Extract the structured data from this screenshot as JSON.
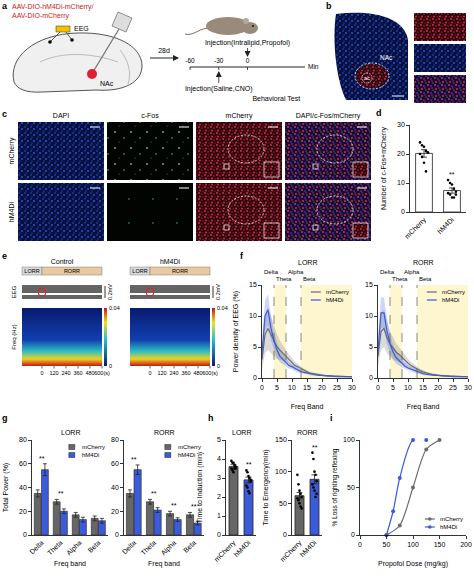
{
  "a": {
    "panel": "a",
    "vectors": [
      "AAV-DIO-hM4Di-mCherry/",
      "AAV-DIO-mCherry"
    ],
    "electrode": "EEG",
    "target": "NAc",
    "interval": "28d",
    "injection": "Injection(Intralipid,Propofol)",
    "pretreatment": "Injection(Saline,CNO)",
    "test": "Behavioral Test",
    "timeline": {
      "range": [
        -60,
        60
      ],
      "ticks": [
        -60,
        -30,
        0
      ],
      "unit": "Min",
      "pretreatment_time": -30,
      "injection_time": 0,
      "test_start": 0
    }
  },
  "b": {
    "panel": "b",
    "region": "NAc",
    "structure": "ac"
  },
  "c": {
    "panel": "c",
    "columns": [
      "DAPI",
      "c-Fos",
      "mCherry",
      "DAPI/c-Fos/mCherry"
    ],
    "rows": [
      "mCherry",
      "hM4Di"
    ]
  },
  "e": {
    "panel": "e",
    "columns": [
      "Control",
      "hM4Di"
    ],
    "phases": [
      {
        "label": "LORR",
        "start": -200,
        "end": 0
      },
      {
        "label": "RORR",
        "start": 0,
        "end": 600
      }
    ],
    "trace_label": "EEG",
    "scale": "0.2mV",
    "freq_label": "Freq (Hz)",
    "time_range": [
      -200,
      600
    ],
    "time_ticks": [
      0,
      120,
      240,
      360,
      480,
      {
        "value": 600,
        "label": "600(s)"
      }
    ],
    "colorbar_range": [
      0,
      0.04
    ],
    "colorbar_ticks": [
      0,
      0.04
    ]
  },
  "chart_data": [
    {
      "panel": "d",
      "type": "bar",
      "categories": [
        "mCherry",
        "hM4Di"
      ],
      "values": [
        20.2,
        7.4
      ],
      "error": [
        1.3,
        0.9
      ],
      "points": [
        [
          24,
          23,
          22.5,
          21,
          20.5,
          20,
          19,
          17,
          14,
          20.5
        ],
        [
          11,
          10,
          9.5,
          8,
          7,
          6.5,
          6,
          5,
          5,
          6
        ]
      ],
      "color": "#ffffff",
      "ylabel": "Number of c-Fos+mCherry",
      "ylim": [
        0,
        30
      ],
      "yticks": [
        0,
        10,
        20,
        30
      ],
      "annotations": [
        {
          "category": 1,
          "text": "**"
        }
      ]
    },
    {
      "panel": "f",
      "type": "line",
      "title": "LORR",
      "x": [
        0,
        1,
        2,
        3,
        4,
        5,
        6,
        7,
        8,
        9,
        10,
        11,
        12,
        13,
        14,
        15,
        16,
        17,
        18,
        19,
        20,
        21,
        22,
        23,
        24,
        25,
        26,
        27,
        28,
        29,
        30
      ],
      "series": [
        {
          "name": "mCherry",
          "color": "#6b6b6b",
          "values": [
            3.0,
            7.0,
            8.0,
            7.0,
            6.0,
            5.0,
            4.5,
            4.0,
            3.5,
            3.0,
            2.5,
            2.0,
            1.8,
            1.5,
            1.2,
            1.0,
            0.8,
            0.7,
            0.6,
            0.5,
            0.5,
            0.4,
            0.4,
            0.3,
            0.3,
            0.3,
            0.3,
            0.2,
            0.2,
            0.2,
            0.2
          ],
          "error": [
            1.5,
            3.0,
            3.5,
            3.0,
            2.5,
            2.0,
            1.5,
            1.2,
            1.0,
            0.8,
            0.7,
            0.6,
            0.5,
            0.4,
            0.3,
            0.3,
            0.2,
            0.2,
            0.2,
            0.2,
            0.2,
            0.1,
            0.1,
            0.1,
            0.1,
            0.1,
            0.1,
            0.1,
            0.1,
            0.1,
            0.1
          ]
        },
        {
          "name": "hM4Di",
          "color": "#3b5bdb",
          "values": [
            4.0,
            10.0,
            11.0,
            8.0,
            6.0,
            4.5,
            3.5,
            3.0,
            2.5,
            2.0,
            1.8,
            1.5,
            1.2,
            1.0,
            0.9,
            0.8,
            0.6,
            0.5,
            0.5,
            0.4,
            0.4,
            0.3,
            0.3,
            0.3,
            0.2,
            0.2,
            0.2,
            0.2,
            0.2,
            0.2,
            0.2
          ],
          "error": [
            1.5,
            2.5,
            2.5,
            2.0,
            1.5,
            1.2,
            1.0,
            0.8,
            0.6,
            0.5,
            0.4,
            0.4,
            0.3,
            0.3,
            0.2,
            0.2,
            0.2,
            0.1,
            0.1,
            0.1,
            0.1,
            0.1,
            0.1,
            0.1,
            0.1,
            0.1,
            0.1,
            0.1,
            0.1,
            0.1,
            0.1
          ]
        }
      ],
      "xlabel": "Freq Band",
      "ylabel": "Power density of EEG (%)",
      "xlim": [
        0,
        30
      ],
      "xticks": [
        0,
        5,
        10,
        15,
        20,
        25,
        30
      ],
      "ylim": [
        0,
        15
      ],
      "yticks": [
        0,
        5,
        10,
        15
      ],
      "bands": [
        {
          "label": "Delta",
          "start": 0,
          "end": 4
        },
        {
          "label": "Theta",
          "start": 4,
          "end": 8
        },
        {
          "label": "Alpha",
          "start": 8,
          "end": 13
        },
        {
          "label": "Beta",
          "start": 13,
          "end": 30
        }
      ],
      "legend": "upper right"
    },
    {
      "type": "line",
      "title": "RORR",
      "x": [
        0,
        1,
        2,
        3,
        4,
        5,
        6,
        7,
        8,
        9,
        10,
        11,
        12,
        13,
        14,
        15,
        16,
        17,
        18,
        19,
        20,
        21,
        22,
        23,
        24,
        25,
        26,
        27,
        28,
        29,
        30
      ],
      "series": [
        {
          "name": "mCherry",
          "color": "#6b6b6b",
          "values": [
            3.5,
            7.5,
            8.0,
            6.5,
            5.5,
            4.8,
            4.2,
            3.8,
            3.3,
            2.9,
            2.4,
            2.0,
            1.7,
            1.4,
            1.2,
            1.0,
            0.8,
            0.7,
            0.6,
            0.5,
            0.5,
            0.4,
            0.4,
            0.3,
            0.3,
            0.3,
            0.3,
            0.2,
            0.2,
            0.2,
            0.2
          ],
          "error": [
            1.5,
            3.0,
            3.0,
            2.5,
            2.0,
            1.8,
            1.4,
            1.2,
            1.0,
            0.8,
            0.7,
            0.6,
            0.5,
            0.4,
            0.3,
            0.3,
            0.2,
            0.2,
            0.2,
            0.2,
            0.2,
            0.1,
            0.1,
            0.1,
            0.1,
            0.1,
            0.1,
            0.1,
            0.1,
            0.1,
            0.1
          ]
        },
        {
          "name": "hM4Di",
          "color": "#3b5bdb",
          "values": [
            4.5,
            10.5,
            10.5,
            7.5,
            5.5,
            4.2,
            3.3,
            2.8,
            2.3,
            1.9,
            1.6,
            1.4,
            1.2,
            1.0,
            0.9,
            0.7,
            0.6,
            0.5,
            0.5,
            0.4,
            0.4,
            0.3,
            0.3,
            0.3,
            0.2,
            0.2,
            0.2,
            0.2,
            0.2,
            0.2,
            0.2
          ],
          "error": [
            1.5,
            2.5,
            2.5,
            2.0,
            1.5,
            1.2,
            1.0,
            0.8,
            0.6,
            0.5,
            0.4,
            0.4,
            0.3,
            0.3,
            0.2,
            0.2,
            0.2,
            0.1,
            0.1,
            0.1,
            0.1,
            0.1,
            0.1,
            0.1,
            0.1,
            0.1,
            0.1,
            0.1,
            0.1,
            0.1,
            0.1
          ]
        }
      ],
      "xlabel": "Freq Band",
      "xlim": [
        0,
        30
      ],
      "xticks": [
        0,
        5,
        10,
        15,
        20,
        25,
        30
      ],
      "ylim": [
        0,
        15
      ],
      "yticks": [
        0,
        5,
        10,
        15
      ],
      "bands": [
        {
          "label": "Delta",
          "start": 0,
          "end": 4
        },
        {
          "label": "Theta",
          "start": 4,
          "end": 8
        },
        {
          "label": "Alpha",
          "start": 8,
          "end": 13
        },
        {
          "label": "Beta",
          "start": 13,
          "end": 30
        }
      ],
      "legend": "upper right"
    },
    {
      "panel": "g",
      "type": "bar",
      "title": "LORR",
      "categories": [
        "Delta",
        "Theta",
        "Alpha",
        "Beta"
      ],
      "series": [
        {
          "name": "mCherry",
          "color": "#666666",
          "values": [
            35,
            28,
            17,
            14
          ],
          "error": [
            3,
            2,
            2,
            2
          ]
        },
        {
          "name": "hM4Di",
          "color": "#3b5bdb",
          "values": [
            55,
            20,
            13,
            12
          ],
          "error": [
            5,
            2,
            2,
            2
          ]
        }
      ],
      "xlabel": "Freq band",
      "ylabel": "Total Power (%)",
      "ylim": [
        0,
        80
      ],
      "yticks": [
        0,
        20,
        40,
        60,
        80
      ],
      "legend": "upper right",
      "annotations": [
        {
          "category": 0,
          "text": "**"
        },
        {
          "category": 1,
          "text": "**"
        }
      ]
    },
    {
      "type": "bar",
      "title": "RORR",
      "categories": [
        "Delta",
        "Theta",
        "Alpha",
        "Beta"
      ],
      "series": [
        {
          "name": "mCherry",
          "color": "#666666",
          "values": [
            35,
            28,
            18,
            17
          ],
          "error": [
            3,
            2,
            2,
            2
          ]
        },
        {
          "name": "hM4Di",
          "color": "#3b5bdb",
          "values": [
            55,
            21,
            13,
            10
          ],
          "error": [
            4,
            2,
            1.5,
            1.5
          ]
        }
      ],
      "xlabel": "Freq band",
      "ylim": [
        0,
        80
      ],
      "yticks": [
        0,
        20,
        40,
        60,
        80
      ],
      "legend": "upper right",
      "annotations": [
        {
          "category": 0,
          "text": "**"
        },
        {
          "category": 1,
          "text": "**"
        },
        {
          "category": 2,
          "text": "**"
        },
        {
          "category": 3,
          "text": "**"
        }
      ]
    },
    {
      "panel": "h",
      "type": "bar",
      "title": "LORR",
      "categories": [
        "mCherry",
        "hM4Di"
      ],
      "values": [
        3.6,
        2.9
      ],
      "error": [
        0.1,
        0.15
      ],
      "points": [
        [
          3.9,
          3.8,
          3.8,
          3.7,
          3.6,
          3.5,
          3.4,
          3.3,
          3.5,
          3.5
        ],
        [
          3.4,
          3.3,
          3.1,
          3.0,
          2.8,
          2.6,
          2.5,
          2.3,
          2.2,
          2.9
        ]
      ],
      "colors": [
        "#666666",
        "#3b5bdb"
      ],
      "ylabel": "Time to Induction (min)",
      "ylim": [
        0,
        5
      ],
      "yticks": [
        0,
        1,
        2,
        3,
        4,
        5
      ],
      "annotations": [
        {
          "category": 1,
          "text": "**"
        }
      ]
    },
    {
      "type": "bar",
      "title": "RORR",
      "categories": [
        "mCherry",
        "hM4Di"
      ],
      "values": [
        62,
        88
      ],
      "error": [
        5,
        7
      ],
      "points": [
        [
          95,
          80,
          70,
          65,
          60,
          58,
          55,
          50,
          45,
          42
        ],
        [
          130,
          120,
          100,
          95,
          85,
          80,
          75,
          70,
          60,
          65
        ]
      ],
      "colors": [
        "#666666",
        "#3b5bdb"
      ],
      "ylabel": "Time to Emergency(min)",
      "ylim": [
        0,
        150
      ],
      "yticks": [
        0,
        50,
        100,
        150
      ],
      "annotations": [
        {
          "category": 1,
          "text": "**"
        }
      ]
    },
    {
      "panel": "i",
      "type": "line",
      "series": [
        {
          "name": "mCherry",
          "color": "#6b6b6b",
          "x": [
            50,
            75,
            100,
            125,
            150
          ],
          "values": [
            0,
            10,
            50,
            90,
            100
          ]
        },
        {
          "name": "hM4Di",
          "color": "#3b5bdb",
          "x": [
            50,
            62.5,
            75,
            100,
            125
          ],
          "values": [
            0,
            25,
            60,
            100,
            100
          ]
        }
      ],
      "xlabel": "Propofol Dose (mg/kg)",
      "ylabel": "% Loss of righting reflexing",
      "xlim": [
        0,
        200
      ],
      "xticks": [
        0,
        50,
        100,
        150,
        200
      ],
      "ylim": [
        0,
        100
      ],
      "yticks": [
        0,
        50,
        100
      ],
      "legend": "lower right",
      "marker": "circle",
      "line_style": "smooth"
    }
  ]
}
